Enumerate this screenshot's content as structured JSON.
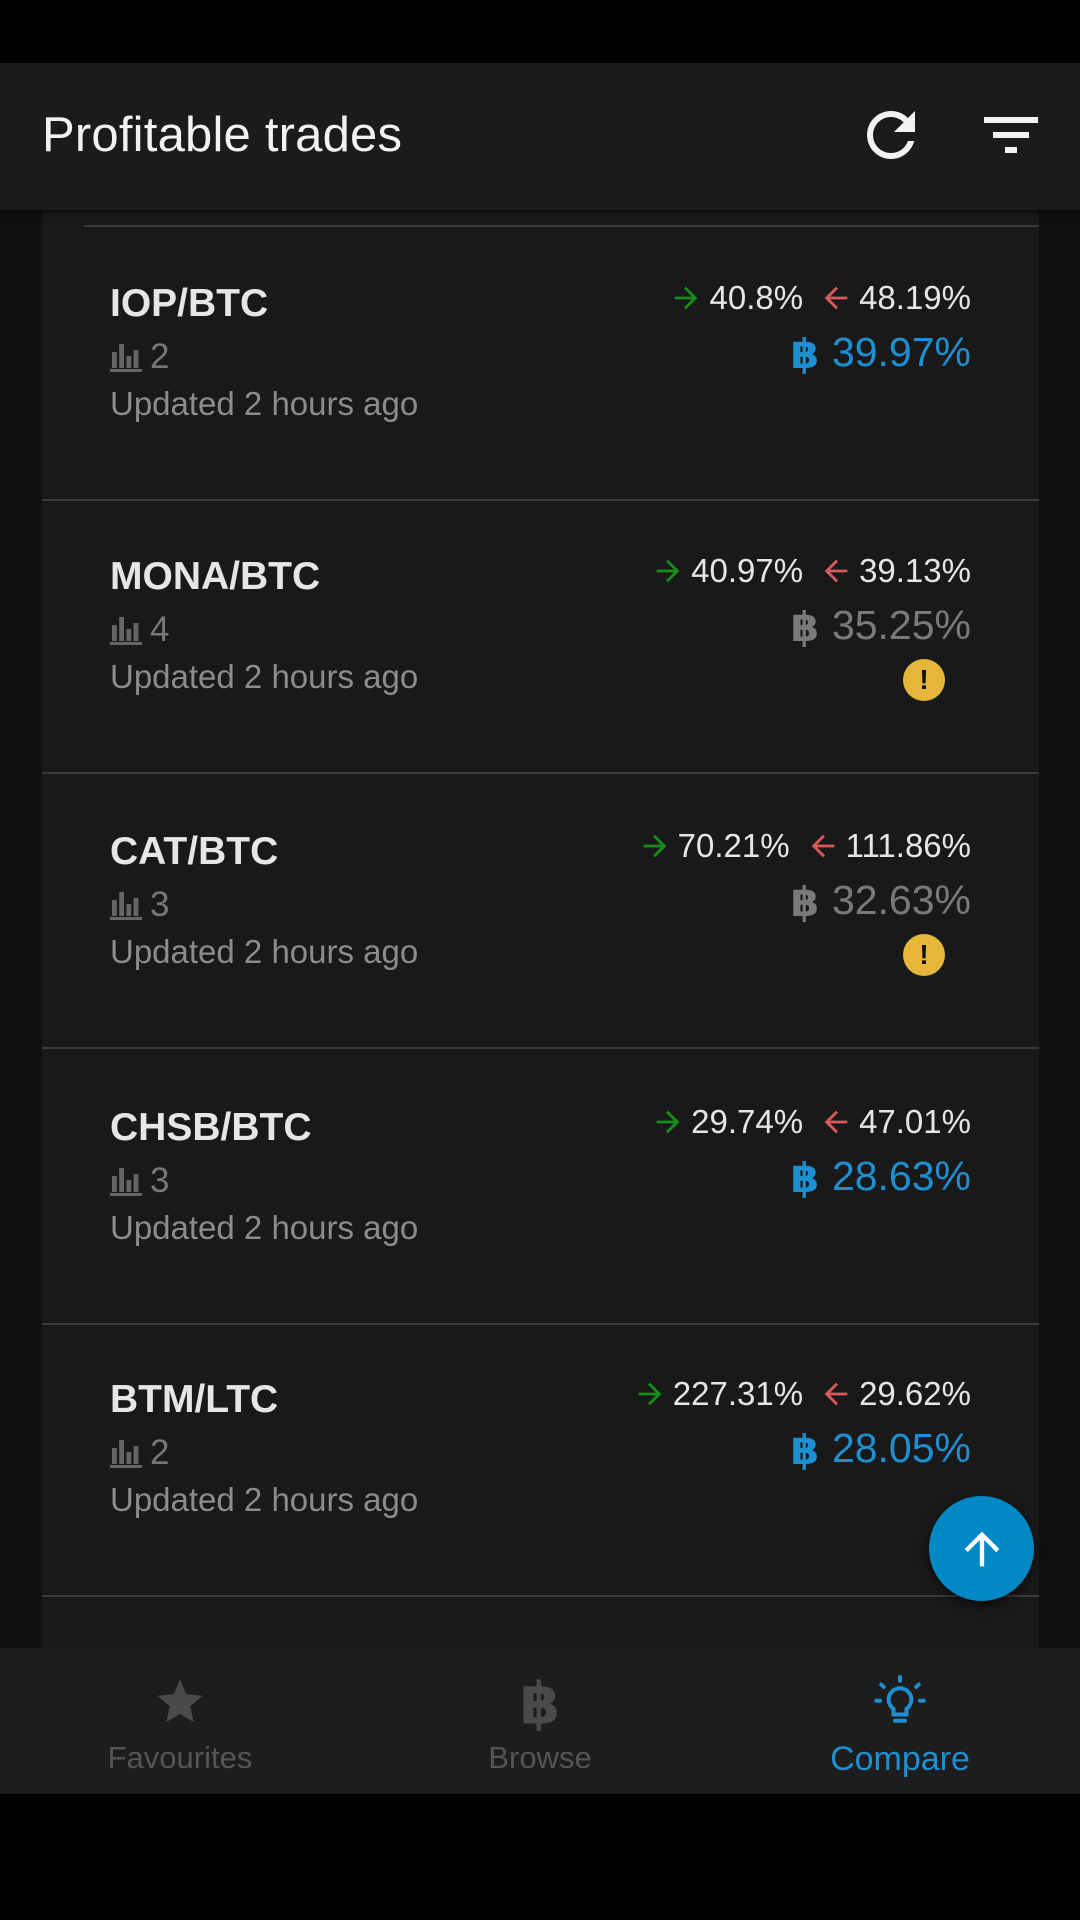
{
  "header": {
    "title": "Profitable trades",
    "refresh_icon": "refresh-icon",
    "filter_icon": "filter-icon"
  },
  "colors": {
    "accent": "#1e8fd0",
    "green": "#1a8c1a",
    "red": "#d85a5a",
    "gray_profit": "#7a7a7a",
    "warning": "#e5b63a"
  },
  "trades": [
    {
      "pair": "IOP/BTC",
      "exchanges": "2",
      "updated": "Updated 2 hours ago",
      "buy_pct": "40.8%",
      "sell_pct": "48.19%",
      "profit": "39.97%",
      "profit_color": "#1e8fd0",
      "warning": false
    },
    {
      "pair": "MONA/BTC",
      "exchanges": "4",
      "updated": "Updated 2 hours ago",
      "buy_pct": "40.97%",
      "sell_pct": "39.13%",
      "profit": "35.25%",
      "profit_color": "#7a7a7a",
      "warning": true,
      "warning_text": "!"
    },
    {
      "pair": "CAT/BTC",
      "exchanges": "3",
      "updated": "Updated 2 hours ago",
      "buy_pct": "70.21%",
      "sell_pct": "111.86%",
      "profit": "32.63%",
      "profit_color": "#7a7a7a",
      "warning": true,
      "warning_text": "!"
    },
    {
      "pair": "CHSB/BTC",
      "exchanges": "3",
      "updated": "Updated 2 hours ago",
      "buy_pct": "29.74%",
      "sell_pct": "47.01%",
      "profit": "28.63%",
      "profit_color": "#1e8fd0",
      "warning": false
    },
    {
      "pair": "BTM/LTC",
      "exchanges": "2",
      "updated": "Updated 2 hours ago",
      "buy_pct": "227.31%",
      "sell_pct": "29.62%",
      "profit": "28.05%",
      "profit_color": "#1e8fd0",
      "warning": false
    }
  ],
  "fab": {
    "icon": "arrow-up-icon"
  },
  "bottom_nav": [
    {
      "label": "Favourites",
      "icon": "star-icon",
      "active": false
    },
    {
      "label": "Browse",
      "icon": "bitcoin-icon",
      "active": false
    },
    {
      "label": "Compare",
      "icon": "lightbulb-icon",
      "active": true
    }
  ]
}
